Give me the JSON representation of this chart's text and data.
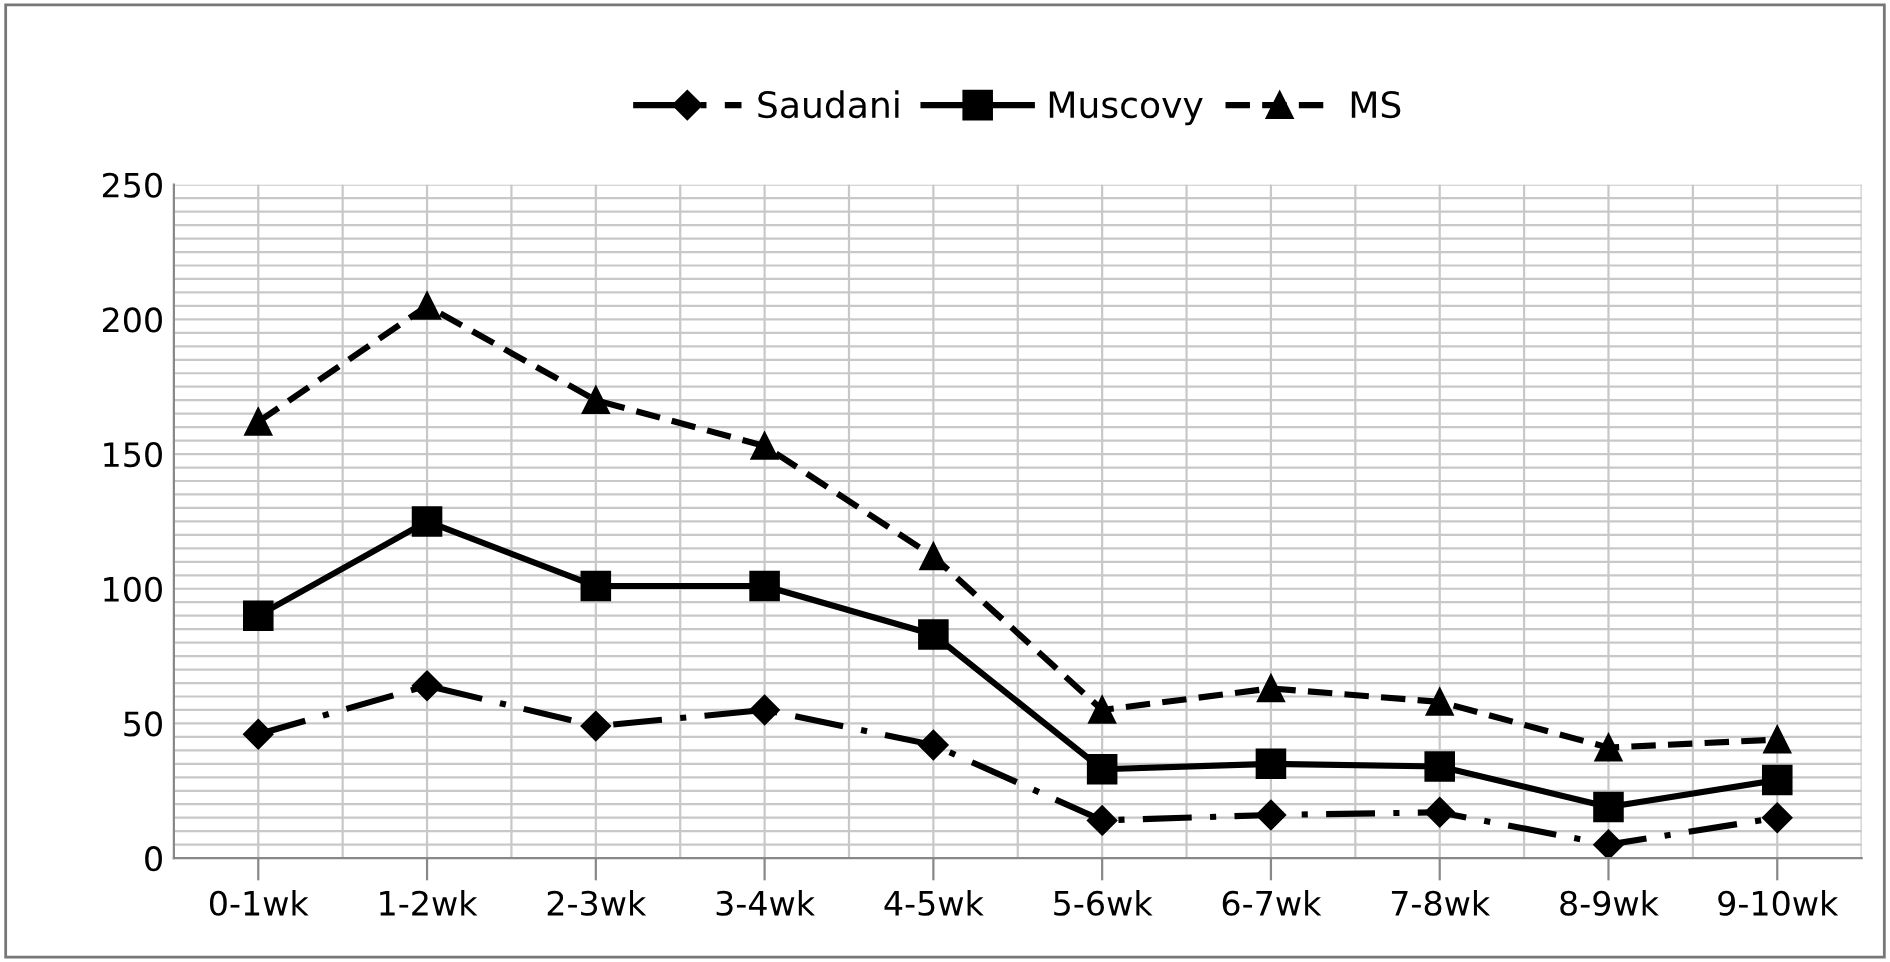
{
  "chart_data": {
    "type": "line",
    "categories": [
      "0-1wk",
      "1-2wk",
      "2-3wk",
      "3-4wk",
      "4-5wk",
      "5-6wk",
      "6-7wk",
      "7-8wk",
      "8-9wk",
      "9-10wk"
    ],
    "series": [
      {
        "name": "Saudani",
        "color": "#000000",
        "marker": "diamond",
        "line_style": "dashdot",
        "values": [
          46,
          64,
          49,
          55,
          42,
          14,
          16,
          17,
          5,
          15
        ]
      },
      {
        "name": "Muscovy",
        "color": "#000000",
        "marker": "square",
        "line_style": "solid",
        "values": [
          90,
          125,
          101,
          101,
          83,
          33,
          35,
          34,
          19,
          29
        ]
      },
      {
        "name": "MS",
        "color": "#000000",
        "marker": "triangle",
        "line_style": "dashed",
        "values": [
          162,
          205,
          170,
          153,
          112,
          55,
          63,
          58,
          41,
          44
        ]
      }
    ],
    "ylim": [
      0,
      250
    ],
    "yticks": [
      0,
      50,
      100,
      150,
      200,
      250
    ],
    "grid": true,
    "legend": "top"
  }
}
